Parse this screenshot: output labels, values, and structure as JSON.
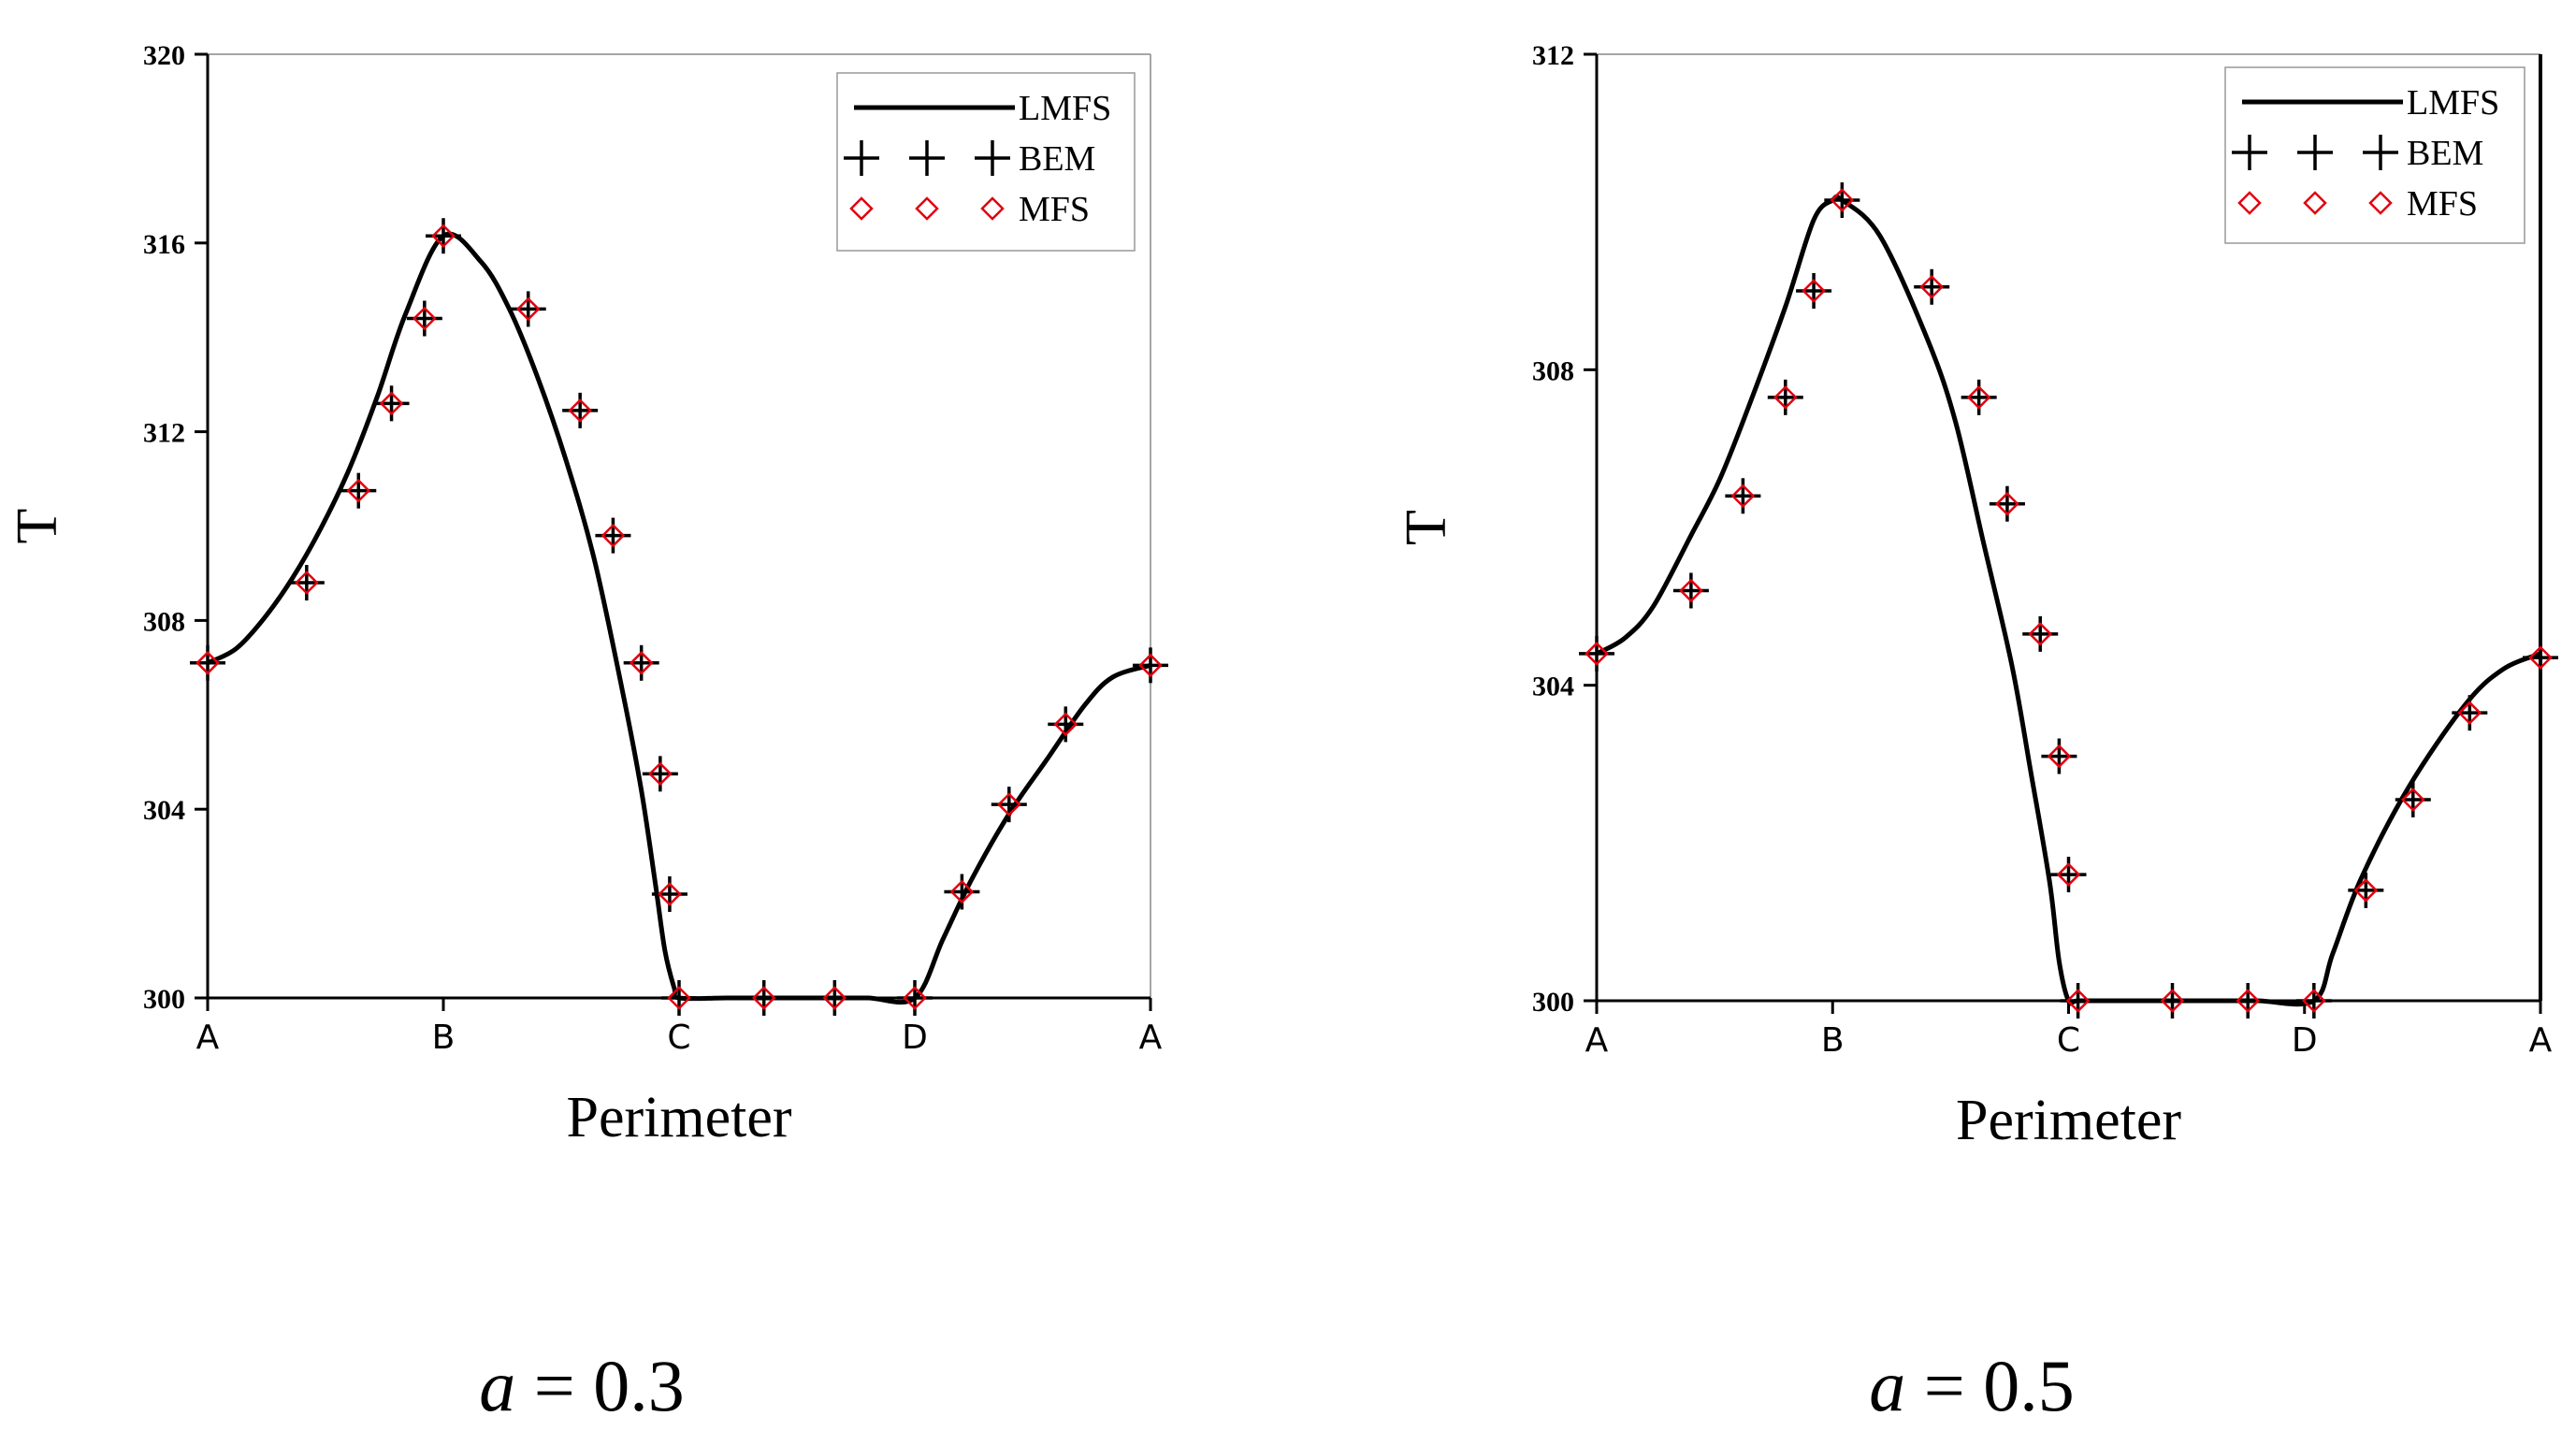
{
  "figure": {
    "panels": [
      {
        "caption_var": "a",
        "caption_rest": " = 0.3"
      },
      {
        "caption_var": "a",
        "caption_rest": " = 0.5"
      }
    ]
  },
  "chart_data": [
    {
      "type": "line",
      "title": "",
      "xlabel": "Perimeter",
      "ylabel": "T",
      "ylim": [
        300,
        320
      ],
      "yticks": [
        300,
        304,
        308,
        312,
        316,
        320
      ],
      "xlim": [
        0,
        1
      ],
      "xticks": [
        {
          "x": 0,
          "label": "A"
        },
        {
          "x": 0.25,
          "label": "B"
        },
        {
          "x": 0.5,
          "label": "C"
        },
        {
          "x": 0.75,
          "label": "D"
        },
        {
          "x": 1,
          "label": "A"
        }
      ],
      "legend": {
        "position": "top-right",
        "entries": [
          "LMFS",
          "BEM",
          "MFS"
        ]
      },
      "grid": false,
      "series": [
        {
          "name": "LMFS",
          "style": "line",
          "color": "#000000",
          "x": [
            0,
            0.03,
            0.06,
            0.09,
            0.12,
            0.15,
            0.18,
            0.21,
            0.25,
            0.29,
            0.32,
            0.35,
            0.38,
            0.41,
            0.44,
            0.46,
            0.475,
            0.485,
            0.495,
            0.5,
            0.55,
            0.6,
            0.65,
            0.7,
            0.75,
            0.78,
            0.81,
            0.85,
            0.89,
            0.93,
            0.96,
            1.0
          ],
          "y": [
            307.1,
            307.4,
            308.05,
            308.9,
            309.95,
            311.2,
            312.75,
            314.5,
            316.15,
            315.6,
            314.6,
            313.15,
            311.4,
            309.3,
            306.5,
            304.4,
            302.4,
            301.0,
            300.2,
            300.0,
            300.0,
            300.0,
            300.0,
            300.0,
            300.0,
            301.25,
            302.5,
            303.9,
            305.05,
            306.2,
            306.8,
            307.05
          ]
        },
        {
          "name": "BEM",
          "style": "plus",
          "color": "#000000",
          "x": [
            0,
            0.105,
            0.16,
            0.195,
            0.23,
            0.25,
            0.34,
            0.395,
            0.43,
            0.46,
            0.48,
            0.49,
            0.5,
            0.59,
            0.665,
            0.75,
            0.8,
            0.85,
            0.91,
            1.0
          ],
          "y": [
            307.1,
            308.8,
            310.75,
            312.6,
            314.4,
            316.15,
            314.6,
            312.45,
            309.8,
            307.1,
            304.75,
            302.2,
            300.0,
            300.0,
            300.0,
            300.0,
            302.25,
            304.1,
            305.8,
            307.05
          ]
        },
        {
          "name": "MFS",
          "style": "diamond",
          "color": "#e3000f",
          "x": [
            0,
            0.105,
            0.16,
            0.195,
            0.23,
            0.25,
            0.34,
            0.395,
            0.43,
            0.46,
            0.48,
            0.49,
            0.5,
            0.59,
            0.665,
            0.75,
            0.8,
            0.85,
            0.91,
            1.0
          ],
          "y": [
            307.1,
            308.8,
            310.75,
            312.6,
            314.4,
            316.15,
            314.6,
            312.45,
            309.8,
            307.1,
            304.75,
            302.2,
            300.0,
            300.0,
            300.0,
            300.0,
            302.25,
            304.1,
            305.8,
            307.05
          ]
        }
      ]
    },
    {
      "type": "line",
      "title": "",
      "xlabel": "Perimeter",
      "ylabel": "T",
      "ylim": [
        300,
        312
      ],
      "yticks": [
        300,
        304,
        308,
        312
      ],
      "xlim": [
        0,
        1
      ],
      "xticks": [
        {
          "x": 0,
          "label": "A"
        },
        {
          "x": 0.25,
          "label": "B"
        },
        {
          "x": 0.5,
          "label": "C"
        },
        {
          "x": 0.75,
          "label": "D"
        },
        {
          "x": 1,
          "label": "A"
        }
      ],
      "legend": {
        "position": "top-right",
        "entries": [
          "LMFS",
          "BEM",
          "MFS"
        ]
      },
      "grid": false,
      "series": [
        {
          "name": "LMFS",
          "style": "line",
          "color": "#000000",
          "x": [
            0,
            0.03,
            0.06,
            0.1,
            0.13,
            0.16,
            0.2,
            0.23,
            0.25,
            0.26,
            0.3,
            0.35,
            0.38,
            0.41,
            0.44,
            0.46,
            0.48,
            0.49,
            0.5,
            0.51,
            0.55,
            0.6,
            0.65,
            0.7,
            0.76,
            0.78,
            0.81,
            0.86,
            0.92,
            0.96,
            1.0
          ],
          "y": [
            304.4,
            304.6,
            305.0,
            305.9,
            306.6,
            307.5,
            308.8,
            309.9,
            310.15,
            310.15,
            309.7,
            308.4,
            307.35,
            305.8,
            304.25,
            302.9,
            301.5,
            300.5,
            300.0,
            300.0,
            300.0,
            300.0,
            300.0,
            300.0,
            300.0,
            300.6,
            301.55,
            302.7,
            303.75,
            304.2,
            304.4
          ]
        },
        {
          "name": "BEM",
          "style": "plus",
          "color": "#000000",
          "x": [
            0,
            0.1,
            0.155,
            0.2,
            0.23,
            0.26,
            0.355,
            0.405,
            0.435,
            0.47,
            0.49,
            0.5,
            0.51,
            0.61,
            0.69,
            0.76,
            0.815,
            0.865,
            0.925,
            1.0
          ],
          "y": [
            304.4,
            305.2,
            306.4,
            307.65,
            309.0,
            310.15,
            309.05,
            307.65,
            306.3,
            304.65,
            303.1,
            301.6,
            300.0,
            300.0,
            300.0,
            300.0,
            301.4,
            302.55,
            303.65,
            304.35
          ]
        },
        {
          "name": "MFS",
          "style": "diamond",
          "color": "#e3000f",
          "x": [
            0,
            0.1,
            0.155,
            0.2,
            0.23,
            0.26,
            0.355,
            0.405,
            0.435,
            0.47,
            0.49,
            0.5,
            0.51,
            0.61,
            0.69,
            0.76,
            0.815,
            0.865,
            0.925,
            1.0
          ],
          "y": [
            304.4,
            305.2,
            306.4,
            307.65,
            309.0,
            310.15,
            309.05,
            307.65,
            306.3,
            304.65,
            303.1,
            301.6,
            300.0,
            300.0,
            300.0,
            300.0,
            301.4,
            302.55,
            303.65,
            304.35
          ]
        }
      ]
    }
  ]
}
